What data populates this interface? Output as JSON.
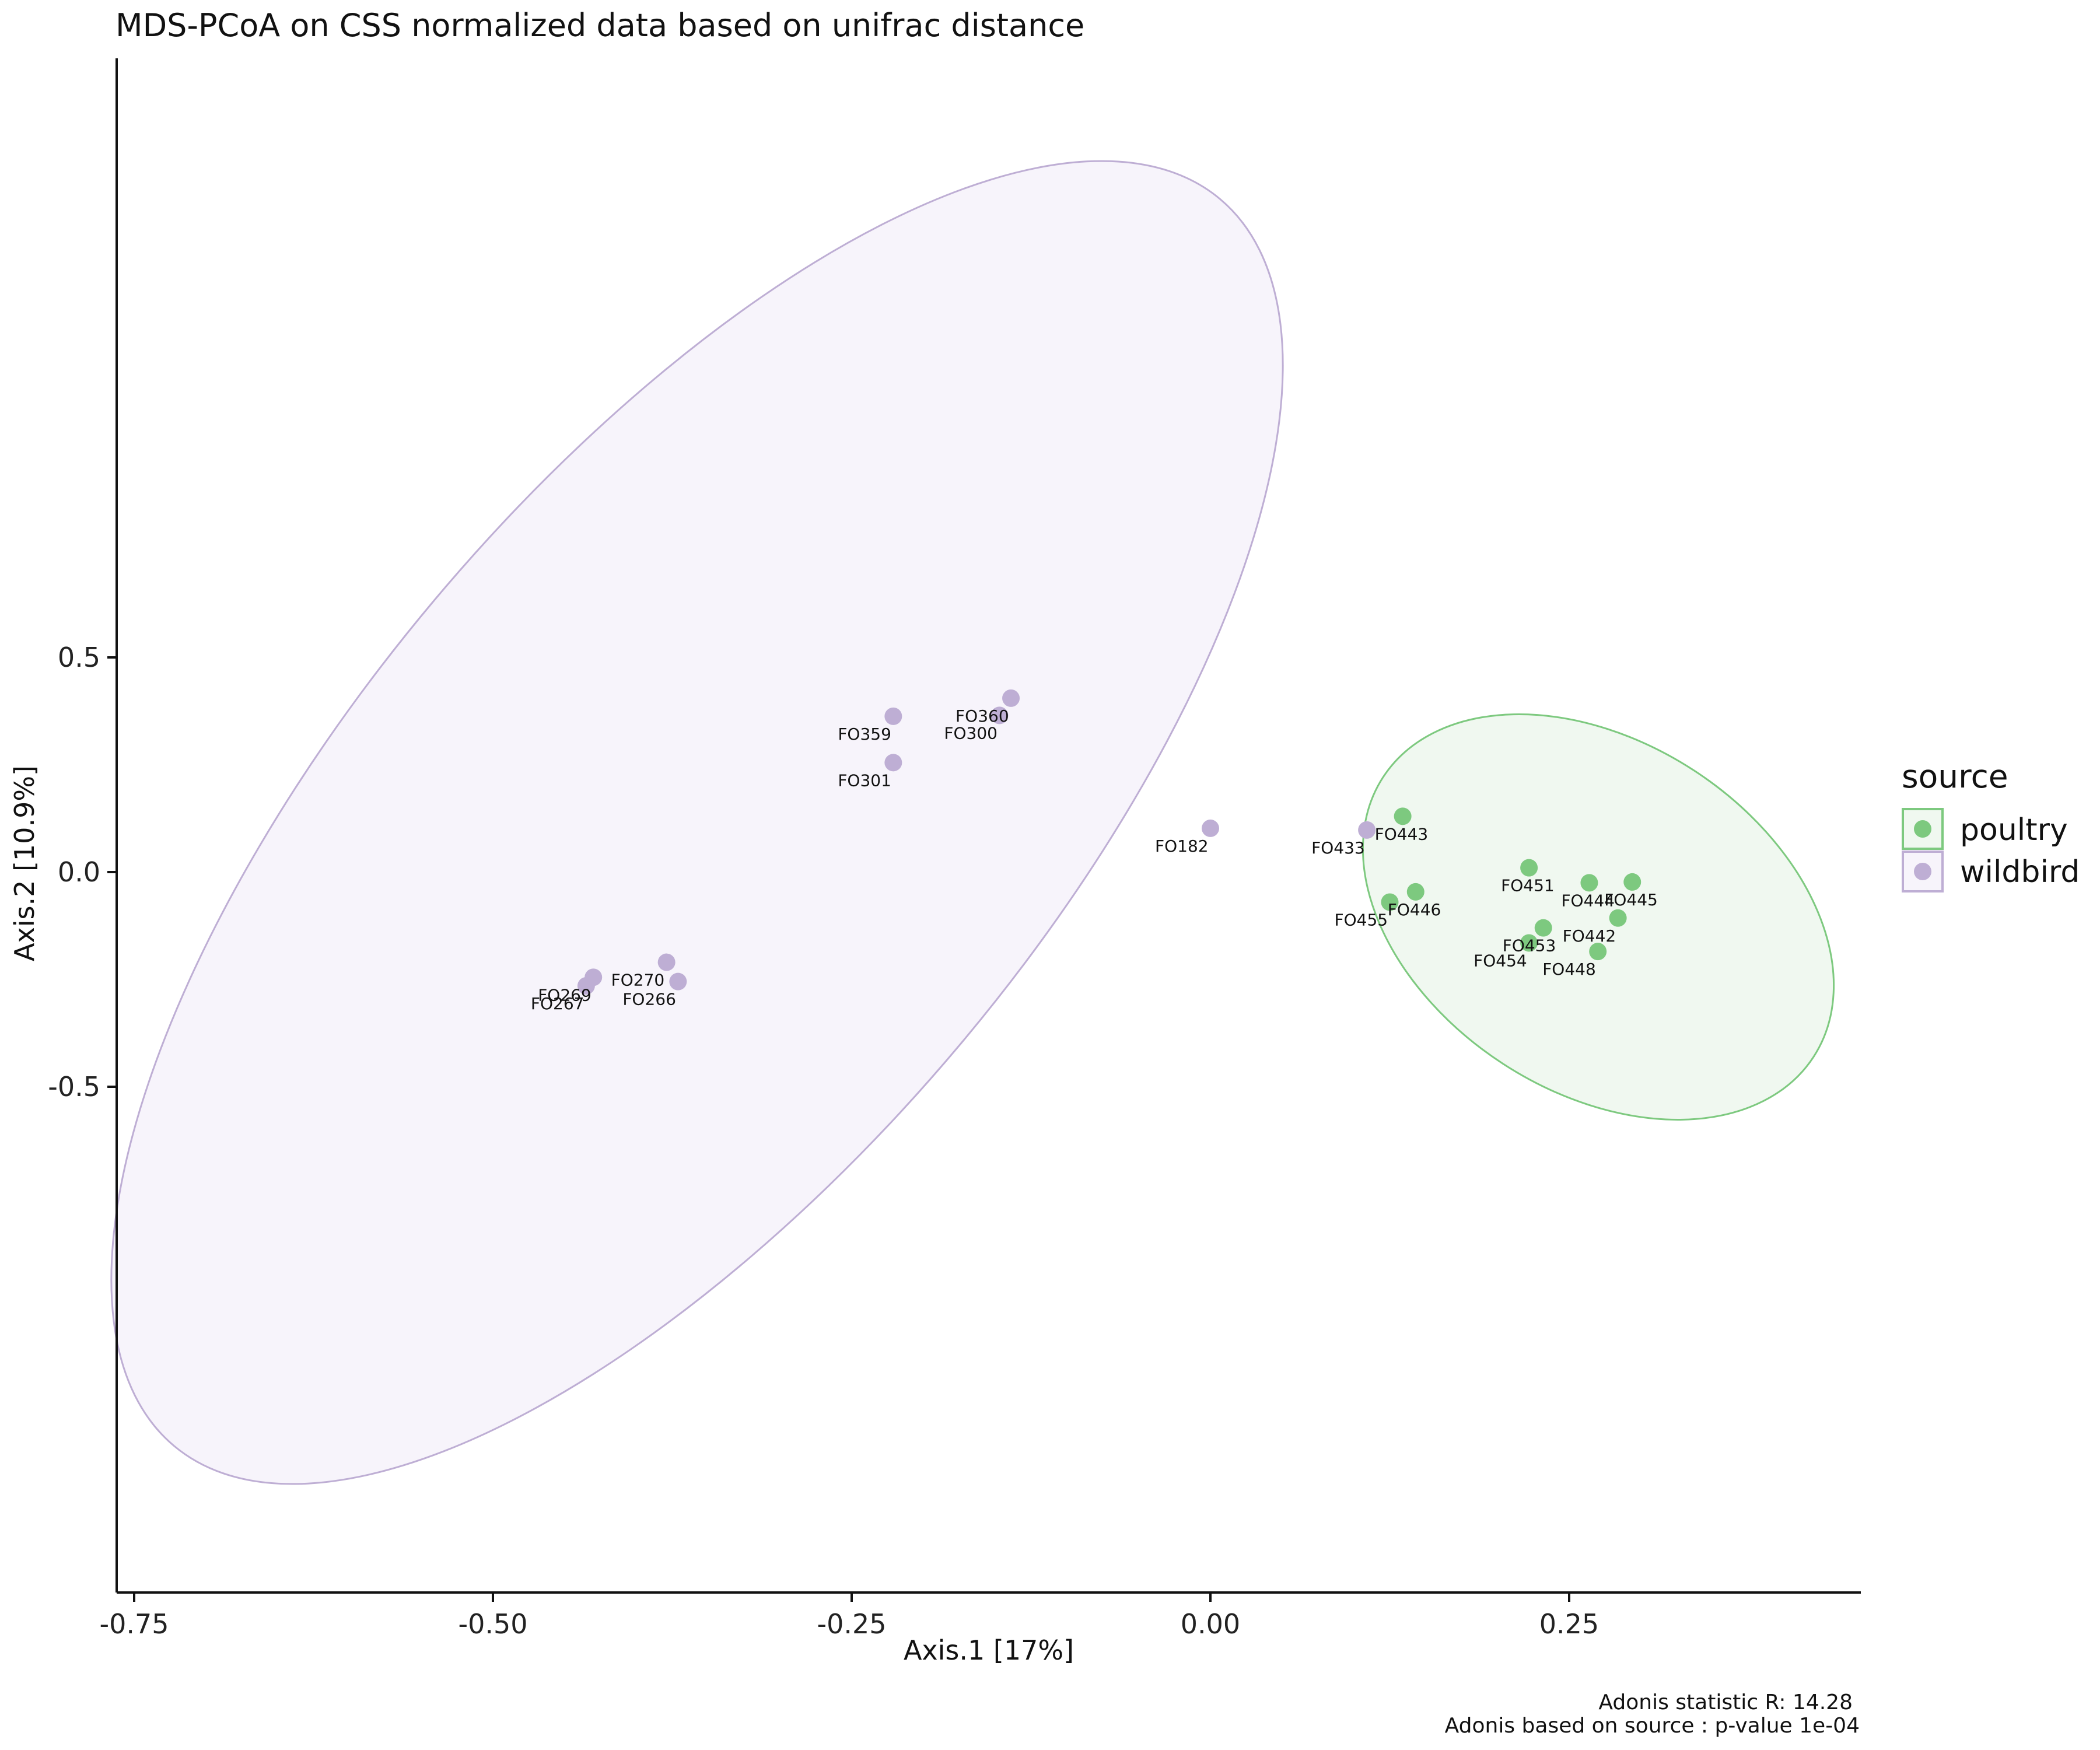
{
  "chart_data": {
    "type": "scatter",
    "title": "MDS-PCoA on CSS normalized data based on unifrac distance",
    "xlabel": "Axis.1   [17%]",
    "ylabel": "Axis.2   [10.9%]",
    "xlim": [
      -0.76,
      0.44
    ],
    "ylim": [
      -0.84,
      0.94
    ],
    "xticks": [
      -0.75,
      -0.5,
      -0.25,
      0.0,
      0.25
    ],
    "xtick_labels": [
      "-0.75",
      "-0.50",
      "-0.25",
      "0.00",
      "0.25"
    ],
    "yticks": [
      -0.5,
      0.0,
      0.5
    ],
    "ytick_labels": [
      "-0.5",
      "0.0",
      "0.5"
    ],
    "grid": false,
    "legend": {
      "title": "source",
      "placement": "right",
      "entries": [
        {
          "name": "poultry",
          "color": "#7dc97f"
        },
        {
          "name": "wildbird",
          "color": "#beaed4"
        }
      ]
    },
    "series": [
      {
        "name": "poultry",
        "color": "#7dc97f",
        "points": [
          {
            "label": "FO443",
            "x": 0.134,
            "y": 0.13
          },
          {
            "label": "FO451",
            "x": 0.222,
            "y": 0.01
          },
          {
            "label": "FO444",
            "x": 0.264,
            "y": -0.025
          },
          {
            "label": "FO445",
            "x": 0.294,
            "y": -0.023
          },
          {
            "label": "FO446",
            "x": 0.143,
            "y": -0.046
          },
          {
            "label": "FO455",
            "x": 0.125,
            "y": -0.07
          },
          {
            "label": "FO442",
            "x": 0.284,
            "y": -0.107
          },
          {
            "label": "FO453",
            "x": 0.232,
            "y": -0.13
          },
          {
            "label": "FO454",
            "x": 0.222,
            "y": -0.165
          },
          {
            "label": "FO448",
            "x": 0.27,
            "y": -0.185
          }
        ]
      },
      {
        "name": "wildbird",
        "color": "#beaed4",
        "points": [
          {
            "label": "FO360",
            "x": -0.139,
            "y": 0.405
          },
          {
            "label": "FO359",
            "x": -0.221,
            "y": 0.363
          },
          {
            "label": "FO300",
            "x": -0.147,
            "y": 0.365
          },
          {
            "label": "FO301",
            "x": -0.221,
            "y": 0.255
          },
          {
            "label": "FO182",
            "x": 0.0,
            "y": 0.102
          },
          {
            "label": "FO433",
            "x": 0.109,
            "y": 0.098
          },
          {
            "label": "FO270",
            "x": -0.379,
            "y": -0.21
          },
          {
            "label": "FO269",
            "x": -0.43,
            "y": -0.245
          },
          {
            "label": "FO267",
            "x": -0.435,
            "y": -0.265
          },
          {
            "label": "FO266",
            "x": -0.371,
            "y": -0.255
          }
        ]
      }
    ],
    "annotations": [
      "Adonis statistic R: 14.28",
      "Adonis based on  source : p-value 1e-04"
    ]
  }
}
